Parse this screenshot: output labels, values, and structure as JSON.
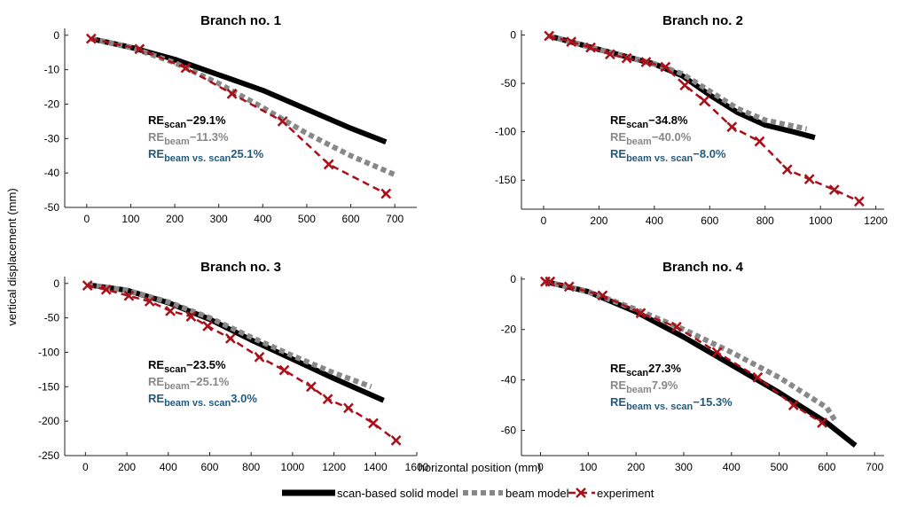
{
  "figure": {
    "xlabel": "horizontal position (mm)",
    "ylabel": "vertical displacement (mm)",
    "legend": {
      "placement": "bottom-center",
      "entries": [
        "scan-based solid model",
        "beam model",
        "experiment"
      ]
    },
    "colors": {
      "scan": "#000000",
      "beam": "#888888",
      "experiment": "#a8101a",
      "re_beam_vs_scan": "#1f5a80"
    }
  },
  "chart_data": [
    {
      "type": "line",
      "title": "Branch no. 1",
      "xlim": [
        -50,
        750
      ],
      "ylim": [
        -50,
        2
      ],
      "xticks": [
        0,
        100,
        200,
        300,
        400,
        500,
        600,
        700
      ],
      "yticks": [
        0,
        -10,
        -20,
        -30,
        -40,
        -50
      ],
      "series": [
        {
          "name": "scan-based solid model",
          "x": [
            10,
            100,
            200,
            300,
            400,
            500,
            600,
            680
          ],
          "y": [
            -1,
            -3.5,
            -7,
            -11.5,
            -16,
            -21.5,
            -27,
            -31
          ]
        },
        {
          "name": "beam model",
          "x": [
            10,
            100,
            200,
            300,
            400,
            500,
            600,
            700
          ],
          "y": [
            -1,
            -3.5,
            -8,
            -14,
            -21,
            -28.5,
            -35,
            -40.5
          ]
        },
        {
          "name": "experiment",
          "x": [
            10,
            120,
            225,
            330,
            445,
            550,
            680
          ],
          "y": [
            -1,
            -4,
            -9.5,
            -17,
            -25,
            -37.5,
            -46
          ]
        }
      ],
      "annotations": {
        "re_scan": {
          "label": "RE",
          "sub": "scan",
          "value": "−29.1%"
        },
        "re_beam": {
          "label": "RE",
          "sub": "beam",
          "value": "−11.3%"
        },
        "re_beam_vs_scan": {
          "label": "RE",
          "sub": "beam vs. scan",
          "value": "25.1%"
        }
      }
    },
    {
      "type": "line",
      "title": "Branch no. 2",
      "xlim": [
        -80,
        1230
      ],
      "ylim": [
        -180,
        5
      ],
      "xticks": [
        0,
        200,
        400,
        600,
        800,
        1000,
        1200
      ],
      "yticks": [
        0,
        -50,
        -100,
        -150
      ],
      "series": [
        {
          "name": "scan-based solid model",
          "x": [
            20,
            200,
            400,
            500,
            600,
            700,
            800,
            900,
            980
          ],
          "y": [
            -1,
            -15,
            -30,
            -42,
            -62,
            -80,
            -93,
            -100,
            -106
          ]
        },
        {
          "name": "beam model",
          "x": [
            20,
            200,
            400,
            500,
            600,
            700,
            800,
            900,
            950
          ],
          "y": [
            -1,
            -15,
            -30,
            -40,
            -58,
            -76,
            -88,
            -94,
            -97
          ]
        },
        {
          "name": "experiment",
          "x": [
            20,
            100,
            170,
            240,
            300,
            370,
            440,
            510,
            580,
            680,
            780,
            880,
            960,
            1050,
            1140
          ],
          "y": [
            -1,
            -7,
            -13,
            -20,
            -24,
            -28,
            -33,
            -52,
            -68,
            -95,
            -110,
            -139,
            -149,
            -160,
            -172
          ]
        }
      ],
      "annotations": {
        "re_scan": {
          "label": "RE",
          "sub": "scan",
          "value": "−34.8%"
        },
        "re_beam": {
          "label": "RE",
          "sub": "beam",
          "value": "−40.0%"
        },
        "re_beam_vs_scan": {
          "label": "RE",
          "sub": "beam vs. scan",
          "value": "−8.0%"
        }
      }
    },
    {
      "type": "line",
      "title": "Branch no. 3",
      "xlim": [
        -100,
        1600
      ],
      "ylim": [
        -250,
        10
      ],
      "xticks": [
        0,
        200,
        400,
        600,
        800,
        1000,
        1200,
        1400,
        1600
      ],
      "yticks": [
        0,
        -50,
        -100,
        -150,
        -200,
        -250
      ],
      "series": [
        {
          "name": "scan-based solid model",
          "x": [
            10,
            200,
            400,
            600,
            800,
            1000,
            1200,
            1440
          ],
          "y": [
            -2,
            -10,
            -28,
            -52,
            -82,
            -110,
            -138,
            -170
          ]
        },
        {
          "name": "beam model",
          "x": [
            10,
            200,
            400,
            600,
            800,
            1000,
            1200,
            1380
          ],
          "y": [
            -2,
            -10,
            -27,
            -50,
            -78,
            -105,
            -130,
            -150
          ]
        },
        {
          "name": "experiment",
          "x": [
            10,
            100,
            210,
            310,
            410,
            510,
            590,
            700,
            840,
            960,
            1090,
            1170,
            1270,
            1390,
            1500
          ],
          "y": [
            -3,
            -9,
            -18,
            -26,
            -40,
            -48,
            -62,
            -80,
            -107,
            -126,
            -150,
            -168,
            -181,
            -203,
            -228
          ]
        }
      ],
      "annotations": {
        "re_scan": {
          "label": "RE",
          "sub": "scan",
          "value": "−23.5%"
        },
        "re_beam": {
          "label": "RE",
          "sub": "beam",
          "value": "−25.1%"
        },
        "re_beam_vs_scan": {
          "label": "RE",
          "sub": "beam vs. scan",
          "value": "3.0%"
        }
      }
    },
    {
      "type": "line",
      "title": "Branch no. 4",
      "xlim": [
        -40,
        720
      ],
      "ylim": [
        -70,
        1
      ],
      "xticks": [
        0,
        100,
        200,
        300,
        400,
        500,
        600,
        700
      ],
      "yticks": [
        0,
        -20,
        -40,
        -60
      ],
      "series": [
        {
          "name": "scan-based solid model",
          "x": [
            10,
            100,
            200,
            300,
            400,
            500,
            600,
            660
          ],
          "y": [
            -1,
            -5,
            -13,
            -23,
            -34,
            -45,
            -57,
            -66
          ]
        },
        {
          "name": "beam model",
          "x": [
            10,
            100,
            200,
            300,
            400,
            500,
            600,
            620
          ],
          "y": [
            -1,
            -5,
            -12,
            -20,
            -29,
            -39,
            -51,
            -57
          ]
        },
        {
          "name": "experiment",
          "x": [
            10,
            20,
            60,
            130,
            210,
            285,
            370,
            455,
            530,
            590
          ],
          "y": [
            -1,
            -1,
            -3,
            -6.5,
            -13.5,
            -19,
            -29,
            -39,
            -50,
            -57
          ]
        }
      ],
      "annotations": {
        "re_scan": {
          "label": "RE",
          "sub": "scan",
          "value": "27.3%"
        },
        "re_beam": {
          "label": "RE",
          "sub": "beam",
          "value": "7.9%"
        },
        "re_beam_vs_scan": {
          "label": "RE",
          "sub": "beam vs. scan",
          "value": "−15.3%"
        }
      }
    }
  ]
}
